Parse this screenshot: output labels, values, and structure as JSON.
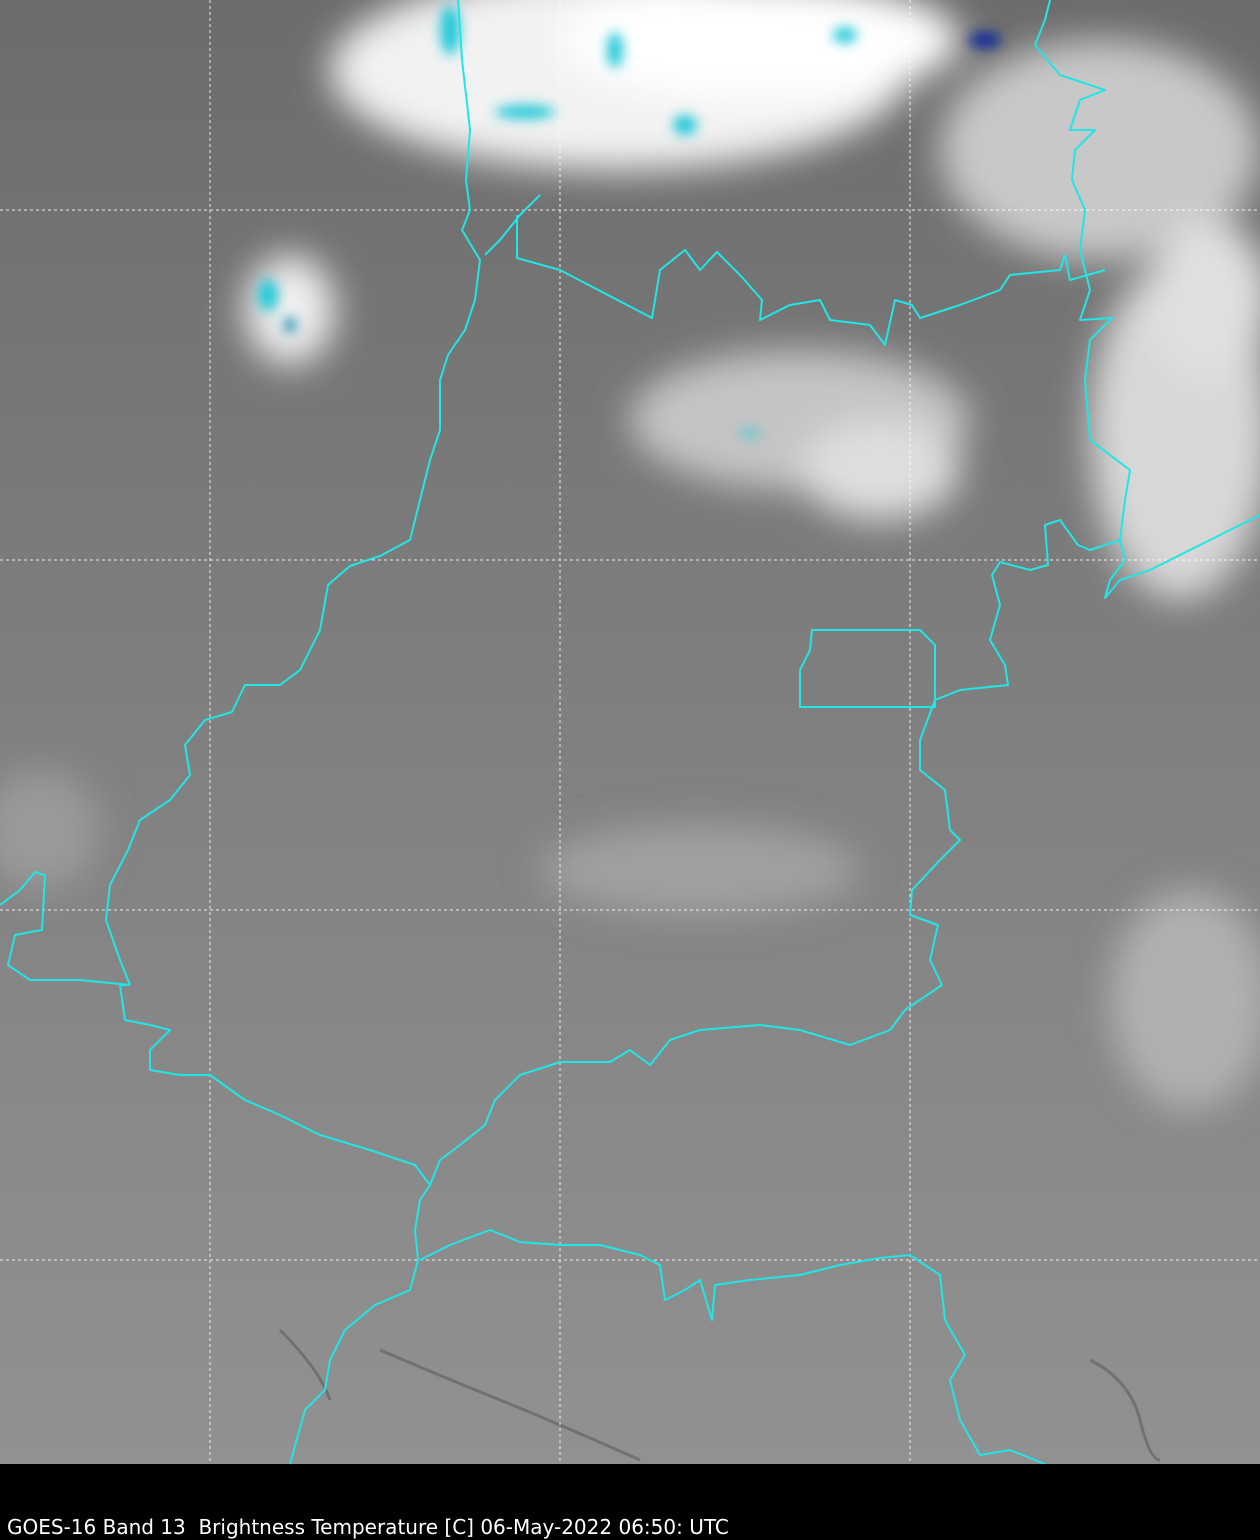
{
  "caption": "GOES-16 Band 13  Brightness Temperature [C] 06-May-2022 06:50: UTC",
  "colors": {
    "border": "#22e5e5",
    "grid": "#ffffff",
    "background_top": "#6f6f6f",
    "background_bottom": "#8f8f8f",
    "cold_cloud": "#20c8d8",
    "coldest_cloud": "#0a2a9a"
  }
}
